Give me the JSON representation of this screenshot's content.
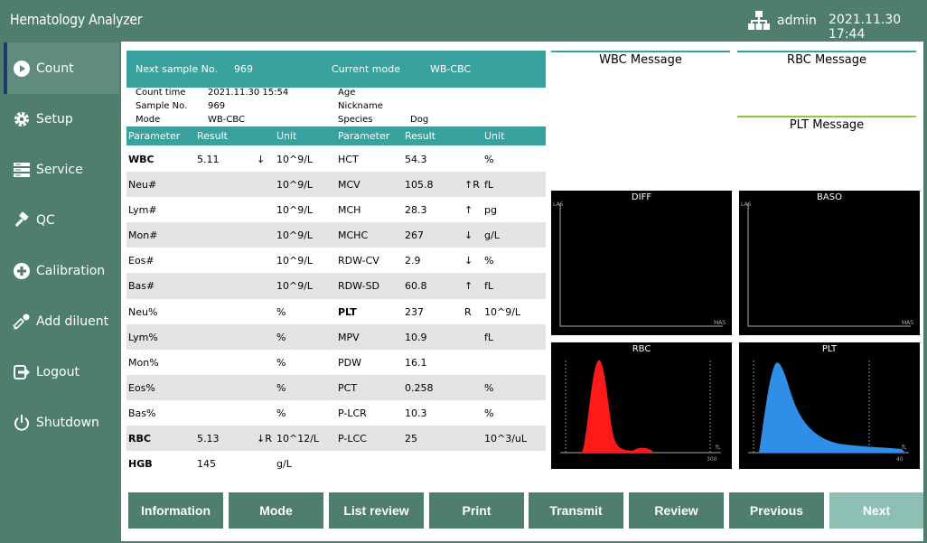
{
  "app": {
    "title": "Hematology Analyzer",
    "user": "admin",
    "datetime": "2021.11.30 17:44"
  },
  "sidebar": {
    "items": [
      {
        "label": "Count",
        "icon": "play-icon"
      },
      {
        "label": "Setup",
        "icon": "gear-icon"
      },
      {
        "label": "Service",
        "icon": "server-icon"
      },
      {
        "label": "QC",
        "icon": "hammer-icon"
      },
      {
        "label": "Calibration",
        "icon": "plus-circle-icon"
      },
      {
        "label": "Add diluent",
        "icon": "dropper-icon"
      },
      {
        "label": "Logout",
        "icon": "logout-icon"
      },
      {
        "label": "Shutdown",
        "icon": "power-icon"
      }
    ]
  },
  "header": {
    "next_sample_label": "Next sample No.",
    "next_sample_value": "969",
    "mode_label": "Current mode",
    "mode_value": "WB-CBC"
  },
  "info": {
    "count_time_label": "Count time",
    "count_time": "2021.11.30 15:54",
    "sample_no_label": "Sample No.",
    "sample_no": "969",
    "mode_label": "Mode",
    "mode": "WB-CBC",
    "age_label": "Age",
    "age": "",
    "nickname_label": "Nickname",
    "nickname": "",
    "species_label": "Species",
    "species": "Dog"
  },
  "table": {
    "headers": [
      "Parameter",
      "Result",
      "Unit",
      "Parameter",
      "Result",
      "Unit"
    ],
    "rows": [
      {
        "p1": "WBC",
        "b1": true,
        "r1": "5.11",
        "f1": "↓",
        "u1": "10^9/L",
        "p2": "HCT",
        "b2": false,
        "r2": "54.3",
        "f2": "",
        "u2": "%"
      },
      {
        "p1": "Neu#",
        "b1": false,
        "r1": "",
        "f1": "",
        "u1": "10^9/L",
        "p2": "MCV",
        "b2": false,
        "r2": "105.8",
        "f2": "↑R",
        "u2": "fL"
      },
      {
        "p1": "Lym#",
        "b1": false,
        "r1": "",
        "f1": "",
        "u1": "10^9/L",
        "p2": "MCH",
        "b2": false,
        "r2": "28.3",
        "f2": "↑",
        "u2": "pg"
      },
      {
        "p1": "Mon#",
        "b1": false,
        "r1": "",
        "f1": "",
        "u1": "10^9/L",
        "p2": "MCHC",
        "b2": false,
        "r2": "267",
        "f2": "↓",
        "u2": "g/L"
      },
      {
        "p1": "Eos#",
        "b1": false,
        "r1": "",
        "f1": "",
        "u1": "10^9/L",
        "p2": "RDW-CV",
        "b2": false,
        "r2": "2.9",
        "f2": "↓",
        "u2": "%"
      },
      {
        "p1": "Bas#",
        "b1": false,
        "r1": "",
        "f1": "",
        "u1": "10^9/L",
        "p2": "RDW-SD",
        "b2": false,
        "r2": "60.8",
        "f2": "↑",
        "u2": "fL"
      },
      {
        "p1": "Neu%",
        "b1": false,
        "r1": "",
        "f1": "",
        "u1": "%",
        "p2": "PLT",
        "b2": true,
        "r2": "237",
        "f2": "R",
        "u2": "10^9/L"
      },
      {
        "p1": "Lym%",
        "b1": false,
        "r1": "",
        "f1": "",
        "u1": "%",
        "p2": "MPV",
        "b2": false,
        "r2": "10.9",
        "f2": "",
        "u2": "fL"
      },
      {
        "p1": "Mon%",
        "b1": false,
        "r1": "",
        "f1": "",
        "u1": "%",
        "p2": "PDW",
        "b2": false,
        "r2": "16.1",
        "f2": "",
        "u2": ""
      },
      {
        "p1": "Eos%",
        "b1": false,
        "r1": "",
        "f1": "",
        "u1": "%",
        "p2": "PCT",
        "b2": false,
        "r2": "0.258",
        "f2": "",
        "u2": "%"
      },
      {
        "p1": "Bas%",
        "b1": false,
        "r1": "",
        "f1": "",
        "u1": "%",
        "p2": "P-LCR",
        "b2": false,
        "r2": "10.3",
        "f2": "",
        "u2": "%"
      },
      {
        "p1": "RBC",
        "b1": true,
        "r1": "5.13",
        "f1": "↓R",
        "u1": "10^12/L",
        "p2": "P-LCC",
        "b2": false,
        "r2": "25",
        "f2": "",
        "u2": "10^3/uL"
      },
      {
        "p1": "HGB",
        "b1": true,
        "r1": "145",
        "f1": "",
        "u1": "g/L",
        "p2": "",
        "b2": false,
        "r2": "",
        "f2": "",
        "u2": ""
      }
    ]
  },
  "messages": {
    "wbc": "WBC Message",
    "rbc": "RBC Message",
    "plt": "PLT Message"
  },
  "plots": {
    "diff": {
      "title": "DIFF",
      "ylabel": "LAS",
      "xlabel": "MAS"
    },
    "baso": {
      "title": "BASO",
      "ylabel": "LAS",
      "xlabel": "MAS"
    },
    "rbc": {
      "title": "RBC",
      "unit": "fL",
      "xmax": "300",
      "color": "#ff1a1a"
    },
    "plt": {
      "title": "PLT",
      "unit": "fL",
      "xmax": "40",
      "color": "#2f8fe6"
    }
  },
  "buttons": [
    "Information",
    "Mode",
    "List review",
    "Print",
    "Transmit",
    "Review",
    "Previous",
    "Next"
  ]
}
